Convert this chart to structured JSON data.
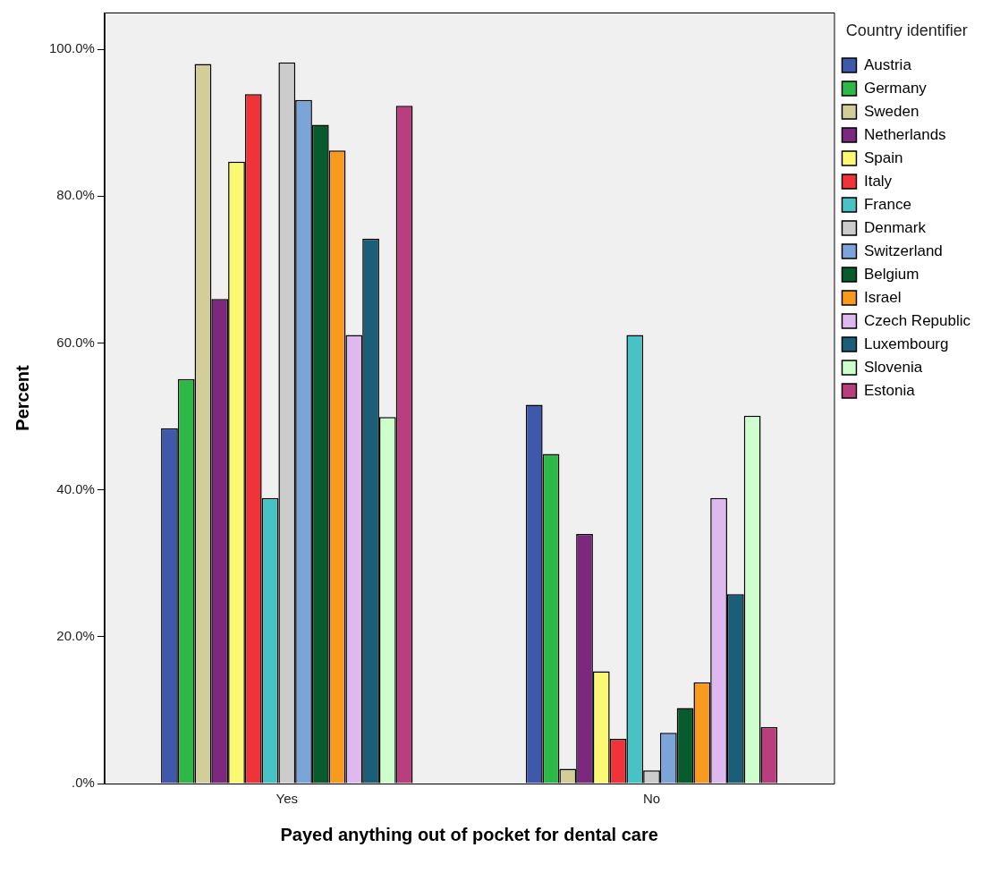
{
  "chart_data": {
    "type": "bar",
    "xlabel": "Payed anything out of pocket for dental care",
    "ylabel": "Percent",
    "legend_title": "Country identifier",
    "legend": "right",
    "grid": false,
    "categories": [
      "Yes",
      "No"
    ],
    "ylim": [
      0,
      105
    ],
    "yticks": [
      {
        "value": 0,
        "label": ".0%"
      },
      {
        "value": 20,
        "label": "20.0%"
      },
      {
        "value": 40,
        "label": "40.0%"
      },
      {
        "value": 60,
        "label": "60.0%"
      },
      {
        "value": 80,
        "label": "80.0%"
      },
      {
        "value": 100,
        "label": "100.0%"
      }
    ],
    "series": [
      {
        "name": "Austria",
        "color": "#3e58ac",
        "values": [
          48.4,
          51.6
        ]
      },
      {
        "name": "Germany",
        "color": "#2eb848",
        "values": [
          55.1,
          44.9
        ]
      },
      {
        "name": "Sweden",
        "color": "#d3ce97",
        "values": [
          98.0,
          2.0
        ]
      },
      {
        "name": "Netherlands",
        "color": "#7b287e",
        "values": [
          66.0,
          34.0
        ]
      },
      {
        "name": "Spain",
        "color": "#fbf873",
        "values": [
          84.7,
          15.3
        ]
      },
      {
        "name": "Italy",
        "color": "#ef3338",
        "values": [
          93.9,
          6.1
        ]
      },
      {
        "name": "France",
        "color": "#48c2c5",
        "values": [
          38.9,
          61.1
        ]
      },
      {
        "name": "Denmark",
        "color": "#cccccc",
        "values": [
          98.2,
          1.8
        ]
      },
      {
        "name": "Switzerland",
        "color": "#7ba4d9",
        "values": [
          93.1,
          6.9
        ]
      },
      {
        "name": "Belgium",
        "color": "#085b2c",
        "values": [
          89.7,
          10.3
        ]
      },
      {
        "name": "Israel",
        "color": "#f89a1e",
        "values": [
          86.2,
          13.8
        ]
      },
      {
        "name": "Czech Republic",
        "color": "#ddb9f0",
        "values": [
          61.1,
          38.9
        ]
      },
      {
        "name": "Luxembourg",
        "color": "#1b5e78",
        "values": [
          74.2,
          25.8
        ]
      },
      {
        "name": "Slovenia",
        "color": "#ccffcc",
        "values": [
          49.9,
          50.1
        ]
      },
      {
        "name": "Estonia",
        "color": "#b93e7d",
        "values": [
          92.3,
          7.7
        ]
      }
    ]
  }
}
